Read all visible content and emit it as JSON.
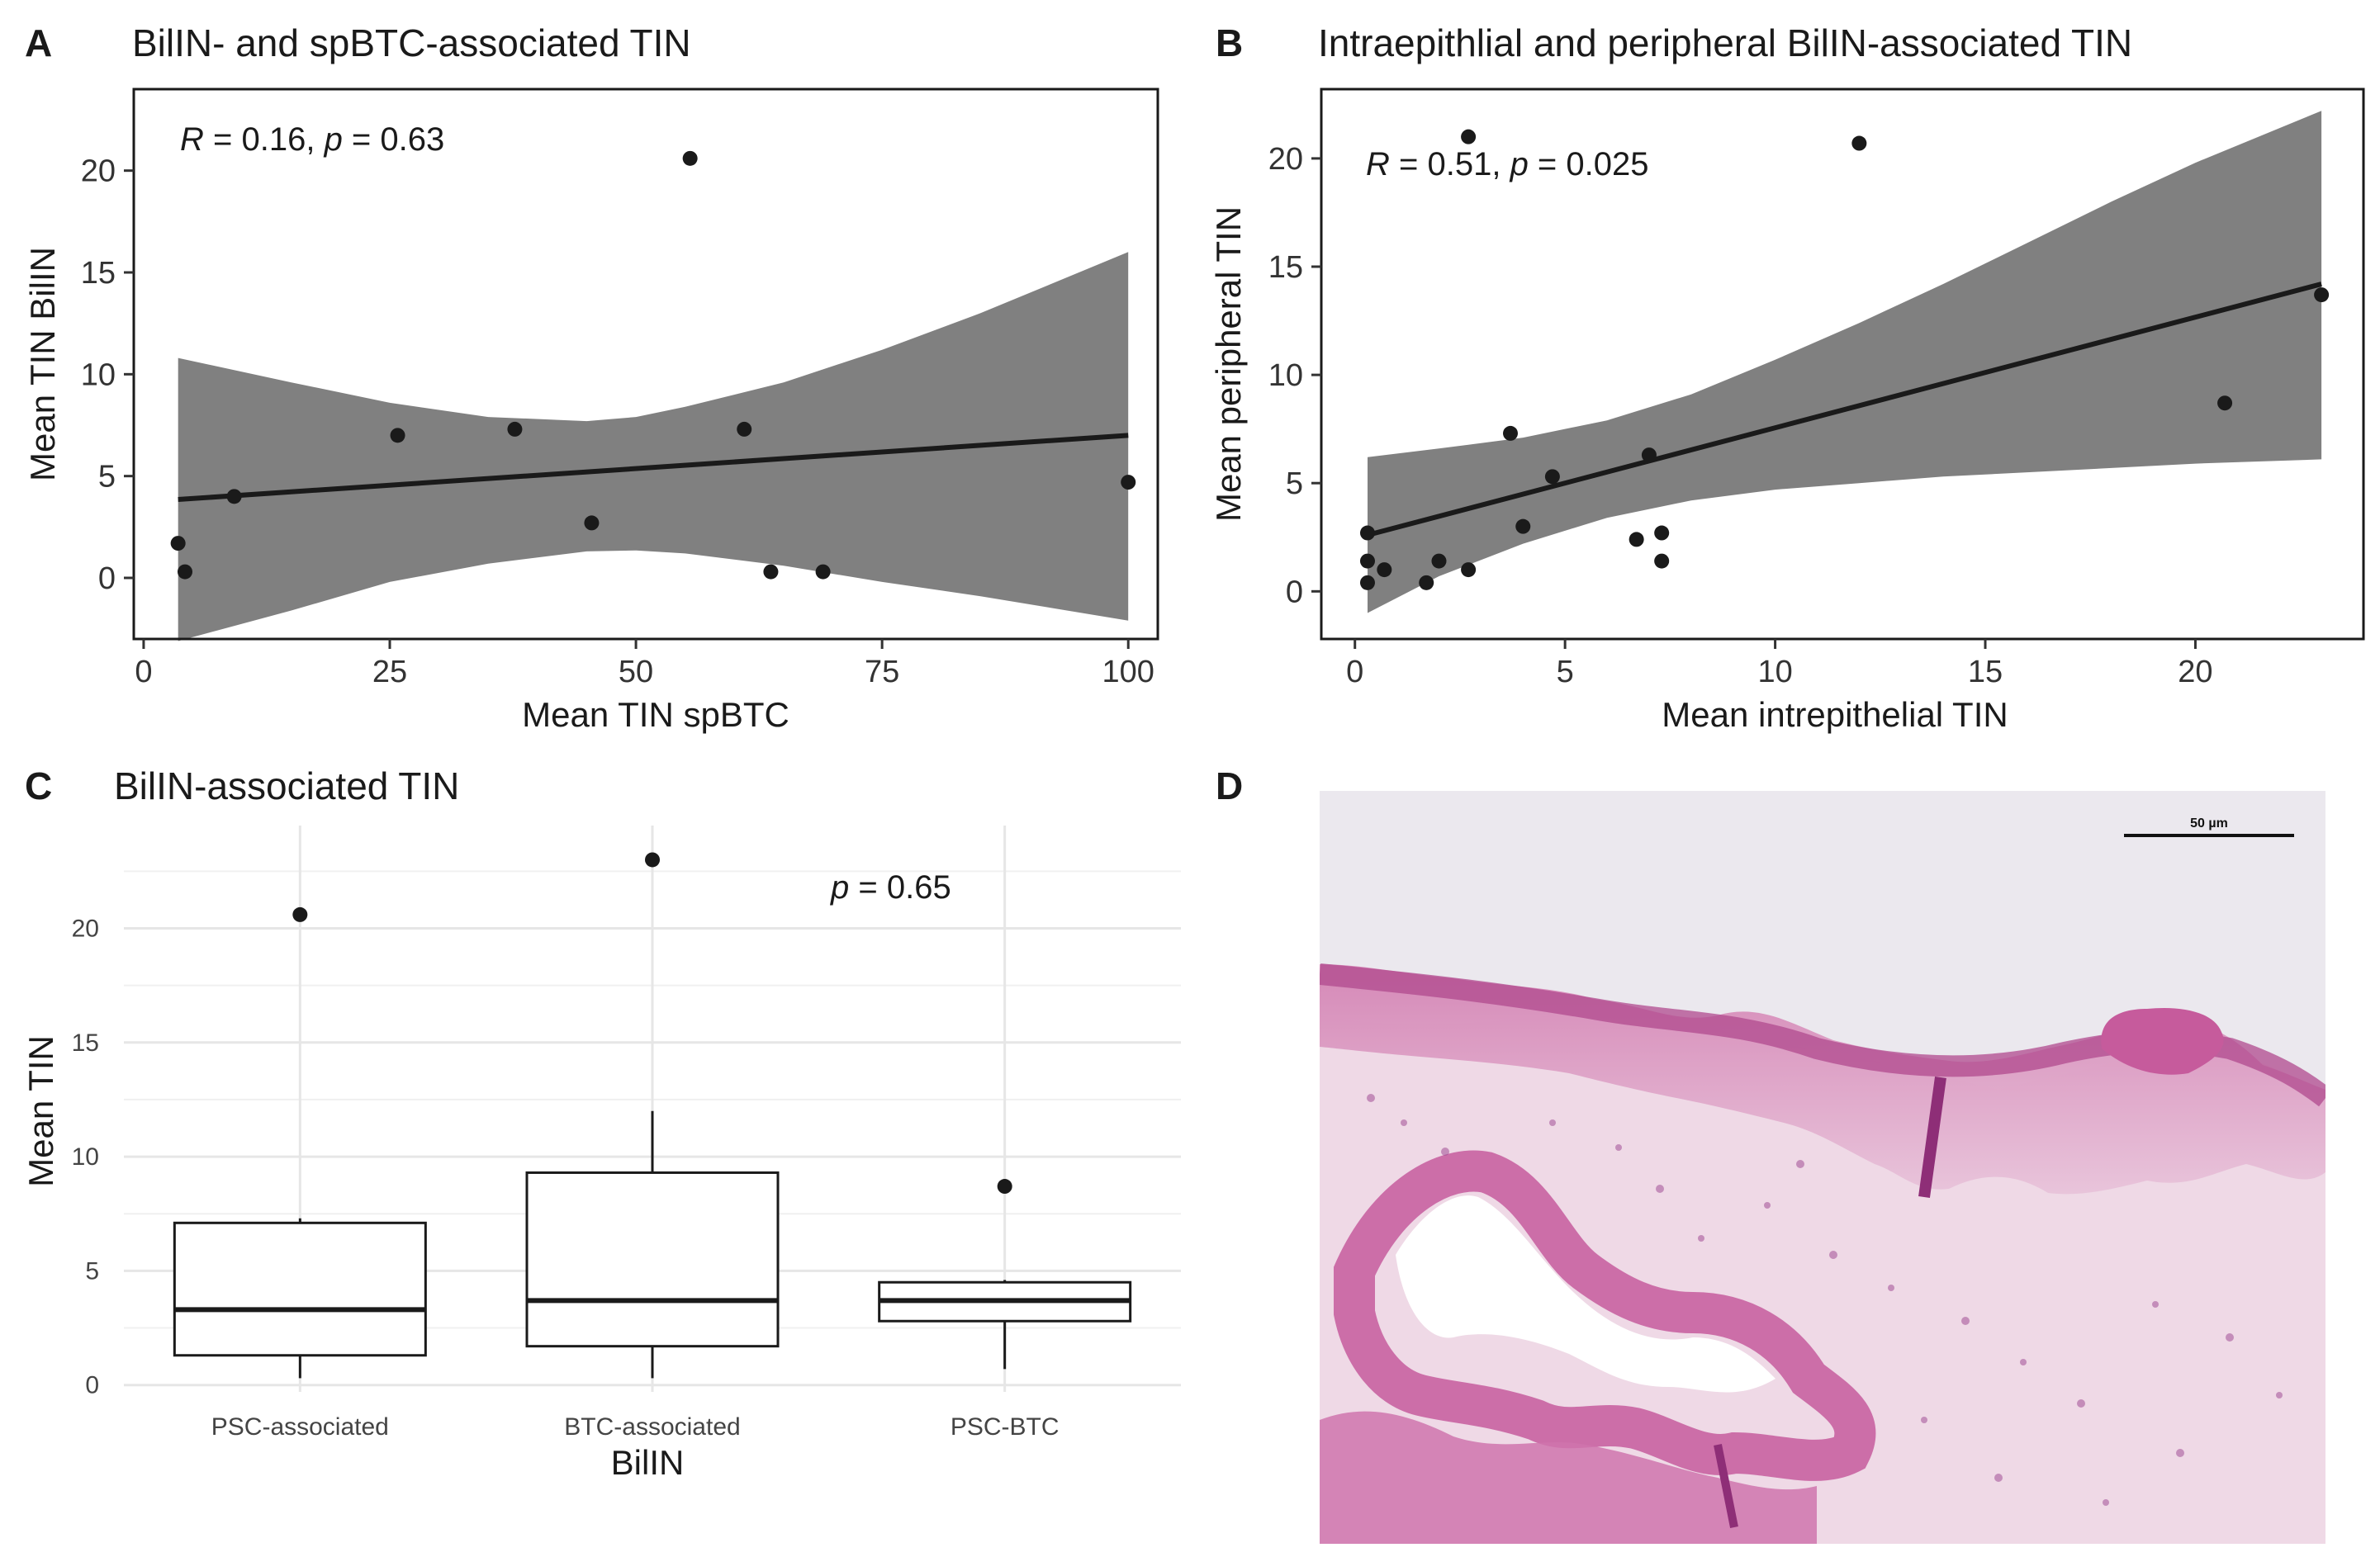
{
  "colors": {
    "band": "#808080",
    "line": "#1a1a1a",
    "point": "#1a1a1a",
    "grid": "#e6e6e6",
    "tissue_bg": "#ece9ef",
    "tissue_pink": "#c2508f",
    "tissue_purple": "#9a3f86"
  },
  "chart_data": [
    {
      "type": "scatter",
      "panel_label": "A",
      "title": "BilIN- and spBTC-associated TIN",
      "xlabel": "Mean TIN spBTC",
      "ylabel": "Mean TIN BilIN",
      "xlim": [
        -1,
        103
      ],
      "ylim": [
        -3,
        24
      ],
      "xticks": [
        0,
        25,
        50,
        75,
        100
      ],
      "yticks": [
        0,
        5,
        10,
        15,
        20
      ],
      "annotation": {
        "r_label": "R",
        "r_value": " = 0.16, ",
        "p_label": "p",
        "p_value": " = 0.63"
      },
      "points": [
        {
          "x": 3.5,
          "y": 1.7
        },
        {
          "x": 4.2,
          "y": 0.3
        },
        {
          "x": 9.2,
          "y": 4.0
        },
        {
          "x": 25.8,
          "y": 7.0
        },
        {
          "x": 37.7,
          "y": 7.3
        },
        {
          "x": 45.5,
          "y": 2.7
        },
        {
          "x": 55.5,
          "y": 20.6
        },
        {
          "x": 61.0,
          "y": 7.3
        },
        {
          "x": 63.7,
          "y": 0.3
        },
        {
          "x": 69.0,
          "y": 0.3
        },
        {
          "x": 100.0,
          "y": 4.7
        }
      ],
      "fit": {
        "x": [
          3.5,
          100
        ],
        "y": [
          3.85,
          7.0
        ]
      },
      "ci_band": {
        "x": [
          3.5,
          15,
          25,
          35,
          45,
          50,
          55,
          65,
          75,
          85,
          100
        ],
        "lower": [
          -3.1,
          -1.6,
          -0.2,
          0.7,
          1.3,
          1.35,
          1.2,
          0.6,
          -0.2,
          -0.9,
          -2.1
        ],
        "upper": [
          10.8,
          9.6,
          8.6,
          7.9,
          7.7,
          7.9,
          8.4,
          9.6,
          11.2,
          13.0,
          16.0
        ]
      }
    },
    {
      "type": "scatter",
      "panel_label": "B",
      "title": "Intraepithlial and peripheral BilIN-associated TIN",
      "xlabel": "Mean intrepithelial TIN",
      "ylabel": "Mean peripheral TIN",
      "xlim": [
        -0.8,
        24
      ],
      "ylim": [
        -2.2,
        23.2
      ],
      "xticks": [
        0,
        5,
        10,
        15,
        20
      ],
      "yticks": [
        0,
        5,
        10,
        15,
        20
      ],
      "annotation": {
        "r_label": "R",
        "r_value": " = 0.51, ",
        "p_label": "p",
        "p_value": " = 0.025"
      },
      "points": [
        {
          "x": 0.3,
          "y": 2.7
        },
        {
          "x": 0.3,
          "y": 1.4
        },
        {
          "x": 0.3,
          "y": 0.4
        },
        {
          "x": 0.7,
          "y": 1.0
        },
        {
          "x": 1.7,
          "y": 0.4
        },
        {
          "x": 2.0,
          "y": 1.4
        },
        {
          "x": 2.7,
          "y": 21.0
        },
        {
          "x": 2.7,
          "y": 1.0
        },
        {
          "x": 3.7,
          "y": 7.3
        },
        {
          "x": 4.0,
          "y": 3.0
        },
        {
          "x": 4.7,
          "y": 5.3
        },
        {
          "x": 6.7,
          "y": 2.4
        },
        {
          "x": 7.0,
          "y": 6.3
        },
        {
          "x": 7.3,
          "y": 2.7
        },
        {
          "x": 7.3,
          "y": 1.4
        },
        {
          "x": 12.0,
          "y": 20.7
        },
        {
          "x": 20.7,
          "y": 8.7
        },
        {
          "x": 23.0,
          "y": 13.7
        }
      ],
      "fit": {
        "x": [
          0.3,
          23.0
        ],
        "y": [
          2.6,
          14.2
        ]
      },
      "ci_band": {
        "x": [
          0.3,
          2,
          4,
          6,
          8,
          10,
          12,
          14,
          16,
          18,
          20,
          23
        ],
        "lower": [
          -1.0,
          0.7,
          2.2,
          3.4,
          4.2,
          4.7,
          5.0,
          5.3,
          5.5,
          5.7,
          5.9,
          6.1
        ],
        "upper": [
          6.2,
          6.6,
          7.1,
          7.9,
          9.1,
          10.7,
          12.4,
          14.2,
          16.1,
          18.0,
          19.8,
          22.2
        ]
      }
    },
    {
      "type": "box",
      "panel_label": "C",
      "title": "BilIN-associated TIN",
      "xlabel": "BilIN",
      "ylabel": "Mean TIN",
      "categories": [
        "PSC-associated",
        "BTC-associated",
        "PSC-BTC"
      ],
      "ylim": [
        -0.3,
        24.5
      ],
      "yticks": [
        0,
        5,
        10,
        15,
        20
      ],
      "annotation": {
        "p_label": "p",
        "p_value": " = 0.65"
      },
      "boxes": [
        {
          "whisker_low": 0.3,
          "q1": 1.3,
          "median": 3.3,
          "q3": 7.1,
          "whisker_high": 7.3,
          "outliers": [
            20.6
          ]
        },
        {
          "whisker_low": 0.3,
          "q1": 1.7,
          "median": 3.7,
          "q3": 9.3,
          "whisker_high": 12.0,
          "outliers": [
            23.0
          ]
        },
        {
          "whisker_low": 0.7,
          "q1": 2.8,
          "median": 3.7,
          "q3": 4.5,
          "whisker_high": 4.6,
          "outliers": [
            8.7
          ]
        }
      ]
    }
  ],
  "panel_d": {
    "panel_label": "D",
    "scale_bar_label": "50 µm"
  }
}
